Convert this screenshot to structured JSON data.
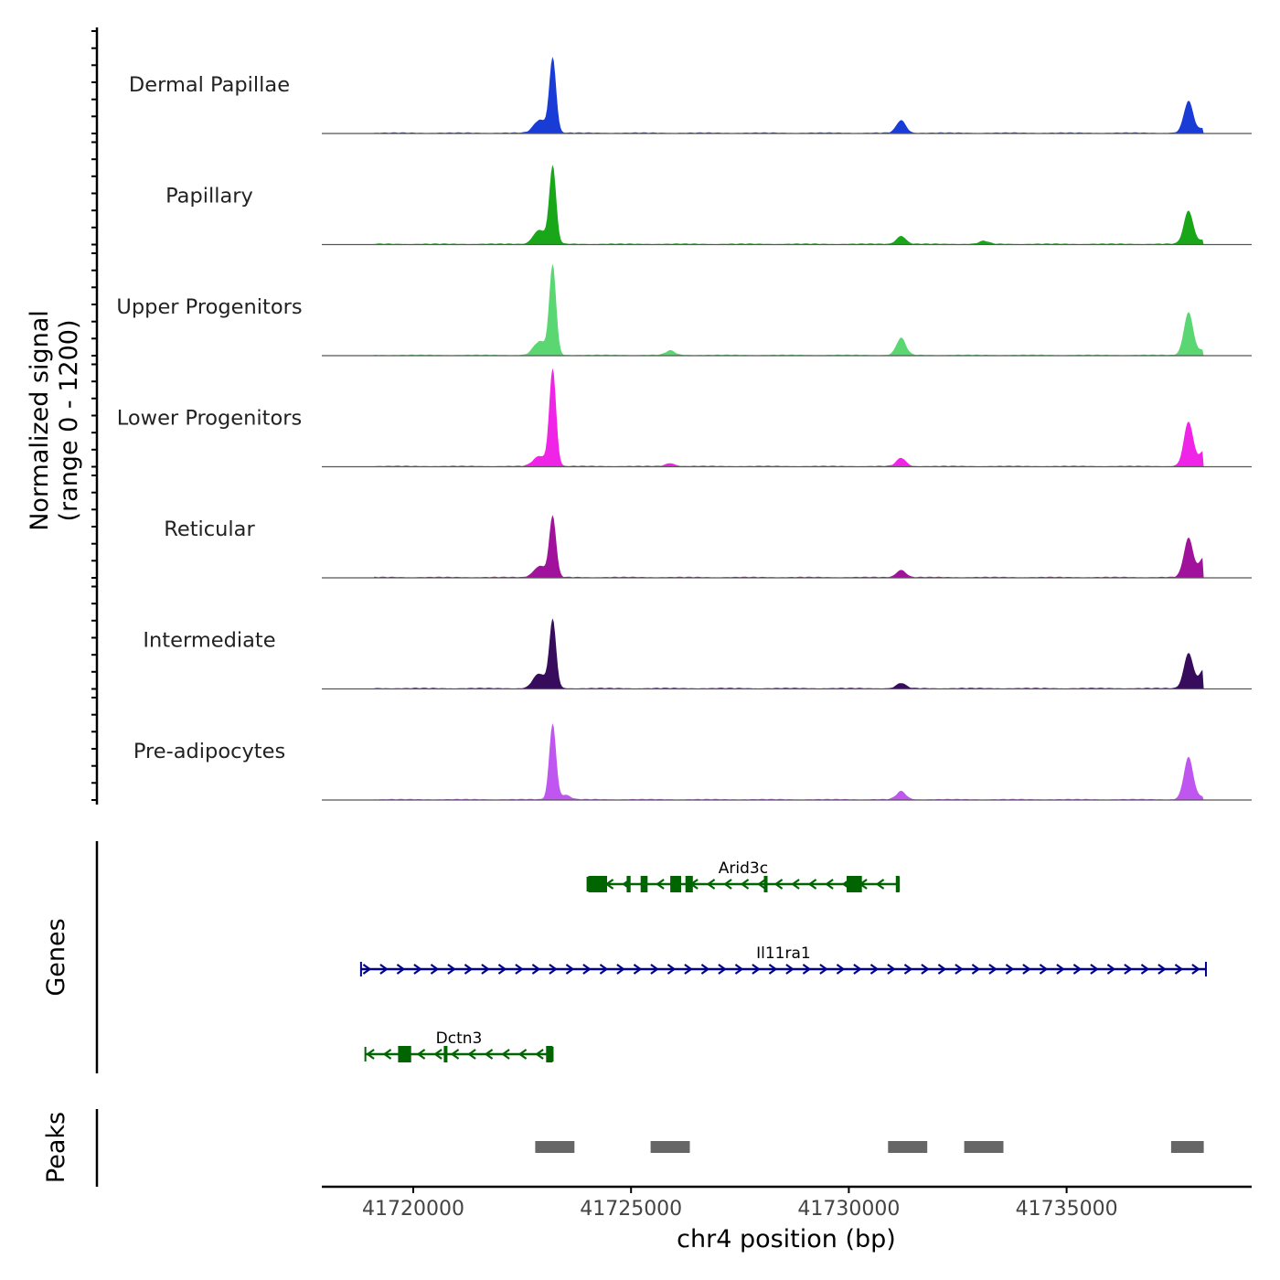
{
  "chart_data": {
    "type": "area",
    "title": "",
    "ylabel": [
      "Normalized signal",
      "(range 0 - 1200)"
    ],
    "ylim": [
      0,
      1200
    ],
    "xlabel": "chr4 position (bp)",
    "xlim": [
      41717900,
      41739250
    ],
    "xticks": [
      41720000,
      41725000,
      41730000,
      41735000
    ],
    "tick_labels": [
      "41720000",
      "41725000",
      "41730000",
      "41735000"
    ],
    "baseline_color": "#555555",
    "tracks": [
      {
        "name": "Dermal Papillae",
        "color": "#1a3cd6",
        "peaks": [
          {
            "x": 41723200,
            "h": 1020
          },
          {
            "x": 41722800,
            "h": 80
          },
          {
            "x": 41722950,
            "h": 140
          },
          {
            "x": 41731200,
            "h": 170
          },
          {
            "x": 41737800,
            "h": 430
          },
          {
            "x": 41738150,
            "h": 60
          }
        ]
      },
      {
        "name": "Papillary",
        "color": "#19a619",
        "peaks": [
          {
            "x": 41723200,
            "h": 1060
          },
          {
            "x": 41722800,
            "h": 100
          },
          {
            "x": 41722950,
            "h": 140
          },
          {
            "x": 41731200,
            "h": 110
          },
          {
            "x": 41733100,
            "h": 40
          },
          {
            "x": 41737800,
            "h": 450
          },
          {
            "x": 41738150,
            "h": 60
          }
        ]
      },
      {
        "name": "Upper Progenitors",
        "color": "#5ad672",
        "peaks": [
          {
            "x": 41723200,
            "h": 1220
          },
          {
            "x": 41722800,
            "h": 90
          },
          {
            "x": 41722950,
            "h": 140
          },
          {
            "x": 41725900,
            "h": 60
          },
          {
            "x": 41731200,
            "h": 230
          },
          {
            "x": 41737800,
            "h": 580
          },
          {
            "x": 41738150,
            "h": 70
          }
        ]
      },
      {
        "name": "Lower Progenitors",
        "color": "#f024e6",
        "peaks": [
          {
            "x": 41723200,
            "h": 1320
          },
          {
            "x": 41722800,
            "h": 70
          },
          {
            "x": 41722950,
            "h": 100
          },
          {
            "x": 41725900,
            "h": 40
          },
          {
            "x": 41731200,
            "h": 110
          },
          {
            "x": 41737800,
            "h": 600
          },
          {
            "x": 41738150,
            "h": 200
          }
        ]
      },
      {
        "name": "Reticular",
        "color": "#a0129c",
        "peaks": [
          {
            "x": 41723200,
            "h": 830
          },
          {
            "x": 41722800,
            "h": 70
          },
          {
            "x": 41722950,
            "h": 120
          },
          {
            "x": 41731200,
            "h": 100
          },
          {
            "x": 41737800,
            "h": 530
          },
          {
            "x": 41738150,
            "h": 270
          }
        ]
      },
      {
        "name": "Intermediate",
        "color": "#380c5c",
        "peaks": [
          {
            "x": 41723200,
            "h": 930
          },
          {
            "x": 41722800,
            "h": 110
          },
          {
            "x": 41722950,
            "h": 140
          },
          {
            "x": 41731200,
            "h": 70
          },
          {
            "x": 41737800,
            "h": 480
          },
          {
            "x": 41738150,
            "h": 250
          }
        ]
      },
      {
        "name": "Pre-adipocytes",
        "color": "#c056f0",
        "peaks": [
          {
            "x": 41723200,
            "h": 1030
          },
          {
            "x": 41723500,
            "h": 60
          },
          {
            "x": 41731200,
            "h": 110
          },
          {
            "x": 41737800,
            "h": 570
          },
          {
            "x": 41738150,
            "h": 40
          }
        ]
      }
    ],
    "genes_label": "Genes",
    "genes": [
      {
        "name": "Arid3c",
        "strand": "-",
        "color": "#006400",
        "start": 41724000,
        "end": 41731150,
        "exons": [
          [
            41724020,
            41724450
          ],
          [
            41724900,
            41724990
          ],
          [
            41725220,
            41725380
          ],
          [
            41725900,
            41726150
          ],
          [
            41726250,
            41726420
          ],
          [
            41728050,
            41728100
          ],
          [
            41729950,
            41730300
          ],
          [
            41731080,
            41731120
          ]
        ]
      },
      {
        "name": "Il11ra1",
        "strand": "+",
        "color": "#00008b",
        "start": 41718800,
        "end": 41738200,
        "exons": []
      },
      {
        "name": "Dctn3",
        "strand": "-",
        "color": "#006400",
        "start": 41718900,
        "end": 41723200,
        "exons": [
          [
            41719650,
            41719950
          ],
          [
            41720700,
            41720780
          ],
          [
            41723050,
            41723200
          ]
        ]
      }
    ],
    "peaks_label": "Peaks",
    "peak_color": "#666666",
    "peak_regions": [
      [
        41722800,
        41723700
      ],
      [
        41725450,
        41726350
      ],
      [
        41730900,
        41731800
      ],
      [
        41732650,
        41733550
      ],
      [
        41737400,
        41738150
      ]
    ]
  }
}
